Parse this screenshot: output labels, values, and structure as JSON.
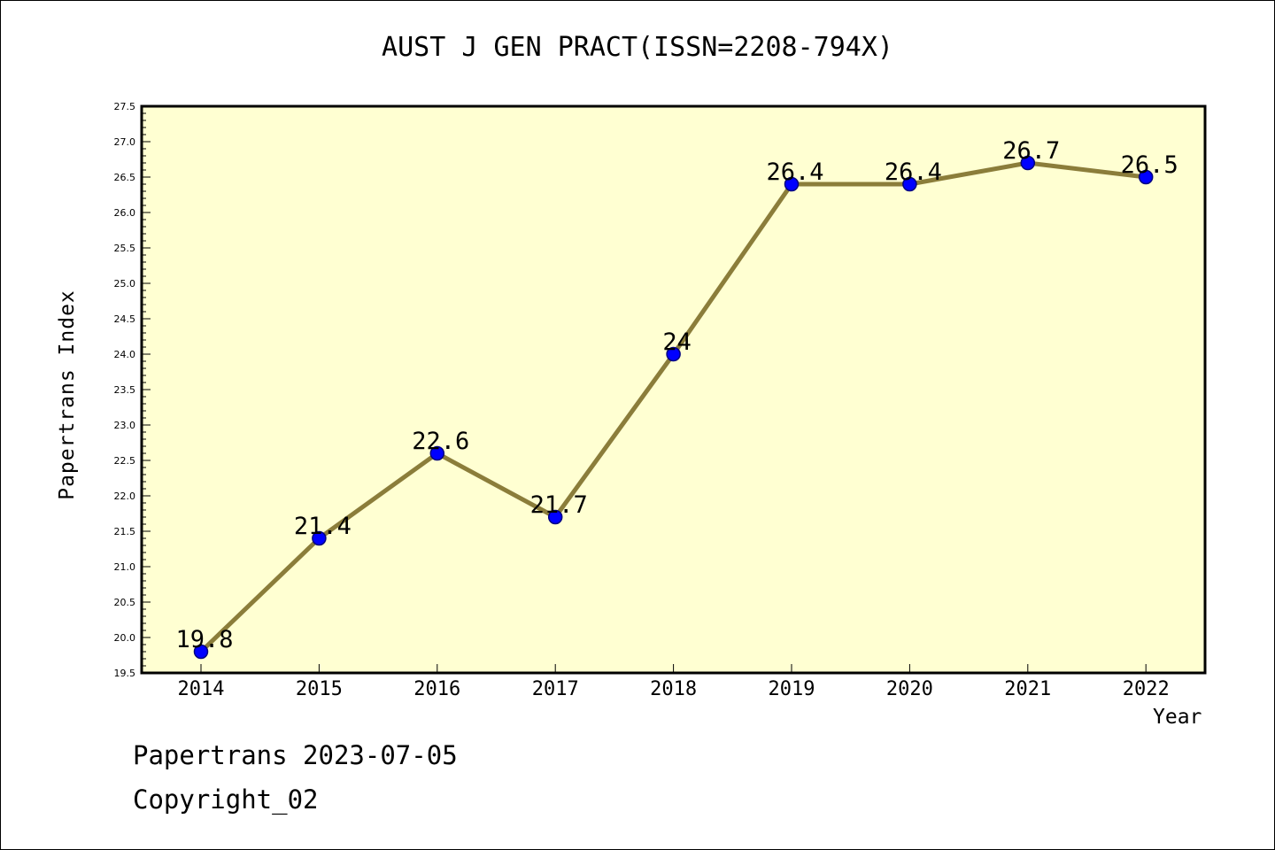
{
  "chart_data": {
    "type": "line",
    "title": "AUST J GEN PRACT(ISSN=2208-794X)",
    "xlabel": "Year",
    "ylabel": "Papertrans Index",
    "categories": [
      "2014",
      "2015",
      "2016",
      "2017",
      "2018",
      "2019",
      "2020",
      "2021",
      "2022"
    ],
    "series": [
      {
        "values": [
          19.8,
          21.4,
          22.6,
          21.7,
          24.0,
          26.4,
          26.4,
          26.7,
          26.5
        ],
        "labels": [
          "19.8",
          "21.4",
          "22.6",
          "21.7",
          "24",
          "26.4",
          "26.4",
          "26.7",
          "26.5"
        ]
      }
    ],
    "ylim": [
      19.5,
      27.5
    ],
    "y_ticks": [
      "19.5",
      "20.0",
      "20.5",
      "21.0",
      "21.5",
      "22.0",
      "22.5",
      "23.0",
      "23.5",
      "24.0",
      "24.5",
      "25.0",
      "25.5",
      "26.0",
      "26.5",
      "27.0",
      "27.5"
    ],
    "grid": false,
    "legend": "none",
    "colors": {
      "plot_background": "#ffffd2",
      "line": "#8b7d3a",
      "marker": "#0000ff",
      "marker_edge": "#000080"
    }
  },
  "footer": {
    "line1": "Papertrans 2023-07-05",
    "line2": "Copyright_02"
  }
}
